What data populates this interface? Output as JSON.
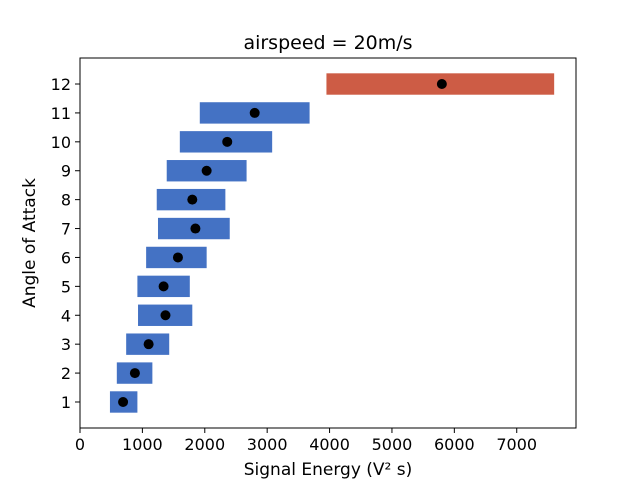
{
  "chart_data": {
    "type": "range-bar",
    "title": "airspeed = 20m/s",
    "xlabel": "Signal Energy (V² s)",
    "ylabel": "Angle of Attack",
    "xlim": [
      0,
      7950
    ],
    "ylim": [
      0.1,
      12.9
    ],
    "xticks": [
      0,
      1000,
      2000,
      3000,
      4000,
      5000,
      6000,
      7000
    ],
    "yticks": [
      1,
      2,
      3,
      4,
      5,
      6,
      7,
      8,
      9,
      10,
      11,
      12
    ],
    "grid": false,
    "colors": {
      "normal": "#4472C4",
      "highlight": "#CD5C45",
      "marker": "#000000"
    },
    "bars": [
      {
        "angle": 1,
        "low": 480,
        "high": 920,
        "mean": 690,
        "highlight": false
      },
      {
        "angle": 2,
        "low": 590,
        "high": 1160,
        "mean": 880,
        "highlight": false
      },
      {
        "angle": 3,
        "low": 740,
        "high": 1430,
        "mean": 1100,
        "highlight": false
      },
      {
        "angle": 4,
        "low": 930,
        "high": 1800,
        "mean": 1370,
        "highlight": false
      },
      {
        "angle": 5,
        "low": 920,
        "high": 1760,
        "mean": 1340,
        "highlight": false
      },
      {
        "angle": 6,
        "low": 1060,
        "high": 2030,
        "mean": 1570,
        "highlight": false
      },
      {
        "angle": 7,
        "low": 1250,
        "high": 2400,
        "mean": 1850,
        "highlight": false
      },
      {
        "angle": 8,
        "low": 1230,
        "high": 2330,
        "mean": 1800,
        "highlight": false
      },
      {
        "angle": 9,
        "low": 1390,
        "high": 2670,
        "mean": 2030,
        "highlight": false
      },
      {
        "angle": 10,
        "low": 1600,
        "high": 3080,
        "mean": 2360,
        "highlight": false
      },
      {
        "angle": 11,
        "low": 1920,
        "high": 3680,
        "mean": 2800,
        "highlight": false
      },
      {
        "angle": 12,
        "low": 3950,
        "high": 7600,
        "mean": 5800,
        "highlight": true
      }
    ]
  }
}
